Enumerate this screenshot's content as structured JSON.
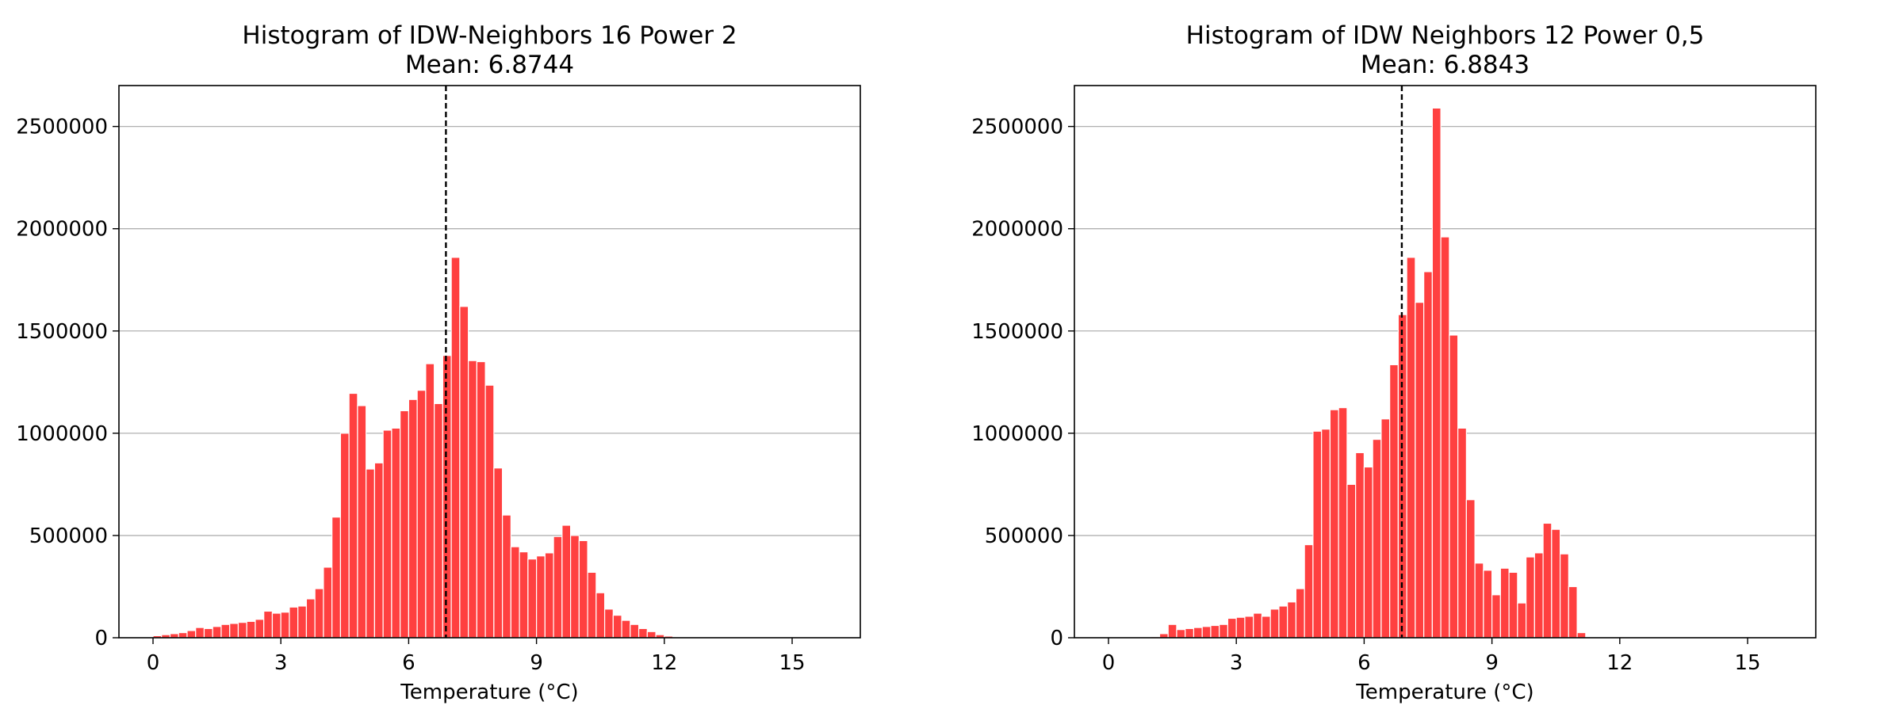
{
  "chart_data": [
    {
      "type": "bar",
      "title": "Histogram of IDW-Neighbors 16 Power 2",
      "subtitle": "Mean: 6.8744",
      "mean_value": 6.8744,
      "xlabel": "Temperature (°C)",
      "ylabel": "",
      "xlim": [
        -0.8,
        16.6
      ],
      "ylim": [
        0,
        2700000
      ],
      "xticks": [
        0,
        3,
        6,
        9,
        12,
        15
      ],
      "yticks": [
        0,
        500000,
        1000000,
        1500000,
        2000000,
        2500000
      ],
      "grid": "y",
      "color": "#ff4040",
      "mean_line_color": "#000000",
      "bin_start": 0,
      "bin_width": 0.2,
      "values": [
        10000,
        15000,
        20000,
        25000,
        35000,
        50000,
        45000,
        55000,
        65000,
        70000,
        75000,
        80000,
        90000,
        130000,
        120000,
        125000,
        150000,
        155000,
        190000,
        240000,
        345000,
        590000,
        1000000,
        1195000,
        1135000,
        825000,
        855000,
        1015000,
        1025000,
        1110000,
        1165000,
        1210000,
        1340000,
        1145000,
        1380000,
        1860000,
        1620000,
        1355000,
        1350000,
        1235000,
        830000,
        600000,
        445000,
        420000,
        385000,
        400000,
        415000,
        495000,
        550000,
        500000,
        475000,
        320000,
        220000,
        140000,
        110000,
        85000,
        65000,
        45000,
        30000,
        15000,
        8000,
        4000,
        2000,
        1000,
        0,
        0,
        0,
        0,
        0,
        0,
        0,
        0,
        0,
        0,
        0,
        0,
        0,
        0,
        0,
        0
      ]
    },
    {
      "type": "bar",
      "title": "Histogram of IDW Neighbors 12 Power 0,5",
      "subtitle": "Mean: 6.8843",
      "mean_value": 6.8843,
      "xlabel": "Temperature (°C)",
      "ylabel": "",
      "xlim": [
        -0.8,
        16.6
      ],
      "ylim": [
        0,
        2700000
      ],
      "xticks": [
        0,
        3,
        6,
        9,
        12,
        15
      ],
      "yticks": [
        0,
        500000,
        1000000,
        1500000,
        2000000,
        2500000
      ],
      "grid": "y",
      "color": "#ff4040",
      "mean_line_color": "#000000",
      "bin_start": 0,
      "bin_width": 0.2,
      "values": [
        0,
        0,
        0,
        0,
        0,
        5000,
        20000,
        65000,
        40000,
        45000,
        50000,
        55000,
        60000,
        65000,
        95000,
        100000,
        105000,
        120000,
        105000,
        140000,
        155000,
        175000,
        240000,
        455000,
        1010000,
        1020000,
        1115000,
        1125000,
        750000,
        905000,
        835000,
        970000,
        1070000,
        1335000,
        1580000,
        1860000,
        1640000,
        1790000,
        2590000,
        1960000,
        1480000,
        1025000,
        675000,
        365000,
        330000,
        210000,
        340000,
        320000,
        170000,
        395000,
        415000,
        560000,
        530000,
        410000,
        250000,
        25000,
        0,
        0,
        0,
        0,
        0,
        0,
        0,
        0,
        0,
        0,
        0,
        0,
        0,
        0,
        0,
        0,
        0,
        0,
        0,
        0,
        0,
        0,
        0,
        0
      ]
    }
  ]
}
